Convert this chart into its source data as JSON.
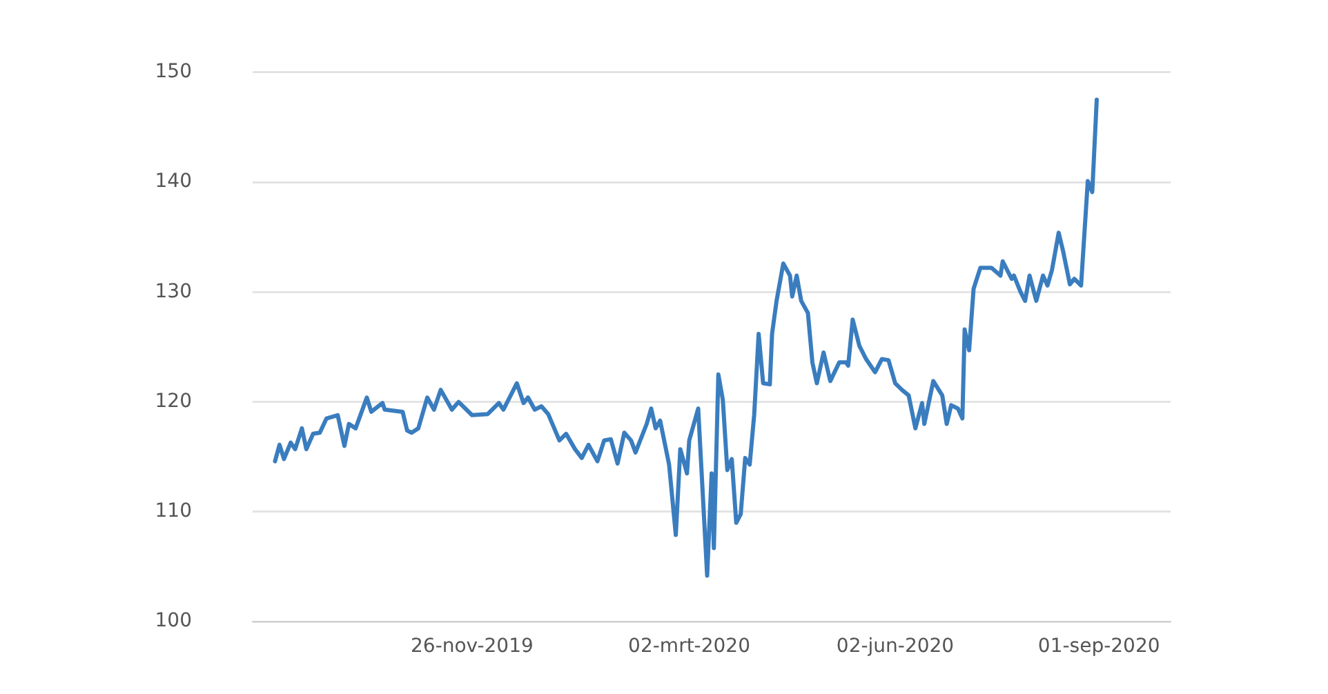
{
  "chart_data": {
    "type": "line",
    "grid": "y",
    "marker": "none",
    "line_style": "solid",
    "xlim": [
      "2019-08-20",
      "2020-10-03"
    ],
    "xticks": [
      {
        "value": "2019-11-26",
        "label": "26-nov-2019"
      },
      {
        "value": "2020-03-02",
        "label": "02-mrt-2020"
      },
      {
        "value": "2020-06-02",
        "label": "02-jun-2020"
      },
      {
        "value": "2020-09-01",
        "label": "01-sep-2020"
      }
    ],
    "ylim": [
      100,
      150
    ],
    "yticks": [
      100,
      110,
      120,
      130,
      140,
      150
    ],
    "x": [
      "2019-08-30",
      "2019-09-01",
      "2019-09-03",
      "2019-09-06",
      "2019-09-08",
      "2019-09-11",
      "2019-09-13",
      "2019-09-16",
      "2019-09-19",
      "2019-09-22",
      "2019-09-27",
      "2019-09-30",
      "2019-10-02",
      "2019-10-05",
      "2019-10-10",
      "2019-10-12",
      "2019-10-17",
      "2019-10-18",
      "2019-10-26",
      "2019-10-28",
      "2019-10-30",
      "2019-11-02",
      "2019-11-06",
      "2019-11-09",
      "2019-11-12",
      "2019-11-17",
      "2019-11-20",
      "2019-11-26",
      "2019-12-03",
      "2019-12-08",
      "2019-12-10",
      "2019-12-16",
      "2019-12-19",
      "2019-12-21",
      "2019-12-24",
      "2019-12-27",
      "2019-12-30",
      "2020-01-04",
      "2020-01-07",
      "2020-01-11",
      "2020-01-14",
      "2020-01-17",
      "2020-01-21",
      "2020-01-24",
      "2020-01-27",
      "2020-01-30",
      "2020-02-02",
      "2020-02-05",
      "2020-02-07",
      "2020-02-12",
      "2020-02-14",
      "2020-02-16",
      "2020-02-18",
      "2020-02-22",
      "2020-02-25",
      "2020-02-27",
      "2020-03-01",
      "2020-03-02",
      "2020-03-06",
      "2020-03-10",
      "2020-03-12",
      "2020-03-13",
      "2020-03-15",
      "2020-03-17",
      "2020-03-19",
      "2020-03-21",
      "2020-03-23",
      "2020-03-25",
      "2020-03-27",
      "2020-03-29",
      "2020-03-31",
      "2020-04-02",
      "2020-04-04",
      "2020-04-07",
      "2020-04-08",
      "2020-04-10",
      "2020-04-13",
      "2020-04-16",
      "2020-04-17",
      "2020-04-19",
      "2020-04-21",
      "2020-04-24",
      "2020-04-26",
      "2020-04-28",
      "2020-05-01",
      "2020-05-04",
      "2020-05-08",
      "2020-05-11",
      "2020-05-12",
      "2020-05-14",
      "2020-05-17",
      "2020-05-20",
      "2020-05-24",
      "2020-05-27",
      "2020-05-30",
      "2020-06-02",
      "2020-06-05",
      "2020-06-08",
      "2020-06-11",
      "2020-06-14",
      "2020-06-15",
      "2020-06-19",
      "2020-06-23",
      "2020-06-25",
      "2020-06-27",
      "2020-06-30",
      "2020-07-02",
      "2020-07-03",
      "2020-07-05",
      "2020-07-07",
      "2020-07-10",
      "2020-07-15",
      "2020-07-19",
      "2020-07-20",
      "2020-07-24",
      "2020-07-25",
      "2020-07-28",
      "2020-07-30",
      "2020-08-01",
      "2020-08-04",
      "2020-08-07",
      "2020-08-09",
      "2020-08-11",
      "2020-08-14",
      "2020-08-16",
      "2020-08-19",
      "2020-08-21",
      "2020-08-24",
      "2020-08-27",
      "2020-08-29",
      "2020-08-31"
    ],
    "series": [
      {
        "color": "#3a7dbf",
        "values": [
          114.6,
          116.1,
          114.8,
          116.3,
          115.7,
          117.6,
          115.7,
          117.1,
          117.2,
          118.5,
          118.8,
          116.0,
          118.0,
          117.6,
          120.4,
          119.1,
          119.9,
          119.3,
          119.1,
          117.4,
          117.2,
          117.6,
          120.4,
          119.3,
          121.1,
          119.3,
          120.0,
          118.8,
          118.9,
          119.9,
          119.3,
          121.7,
          119.9,
          120.4,
          119.3,
          119.6,
          118.9,
          116.5,
          117.1,
          115.7,
          114.9,
          116.1,
          114.6,
          116.5,
          116.6,
          114.4,
          117.2,
          116.5,
          115.4,
          118.0,
          119.4,
          117.6,
          118.3,
          114.3,
          107.9,
          115.7,
          113.5,
          116.5,
          119.4,
          104.2,
          113.5,
          106.7,
          122.5,
          120.2,
          113.8,
          114.8,
          109.0,
          109.8,
          114.9,
          114.3,
          118.8,
          126.2,
          121.7,
          121.6,
          126.2,
          129.2,
          132.6,
          131.5,
          129.6,
          131.5,
          129.2,
          128.1,
          123.6,
          121.7,
          124.5,
          121.9,
          123.6,
          123.6,
          123.3,
          127.5,
          125.1,
          123.9,
          122.7,
          123.9,
          123.8,
          121.7,
          121.1,
          120.6,
          117.6,
          119.9,
          118.0,
          121.9,
          120.6,
          118.0,
          119.7,
          119.4,
          118.5,
          126.6,
          124.7,
          130.3,
          132.2,
          132.2,
          131.5,
          132.8,
          131.2,
          131.5,
          130.0,
          129.2,
          131.5,
          129.2,
          131.5,
          130.6,
          132.0,
          135.4,
          133.7,
          130.7,
          131.2,
          130.6,
          140.1,
          139.1,
          147.5
        ]
      }
    ]
  }
}
